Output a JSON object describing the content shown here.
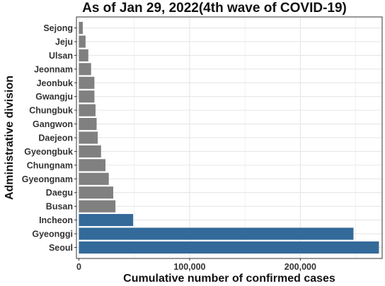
{
  "chart_data": {
    "type": "bar",
    "orientation": "horizontal",
    "title": "As of Jan 29, 2022(4th wave of COVID-19)",
    "xlabel": "Cumulative number of confirmed cases",
    "ylabel": "Administrative division",
    "categories": [
      "Seoul",
      "Gyeonggi",
      "Incheon",
      "Busan",
      "Daegu",
      "Gyeongnam",
      "Chungnam",
      "Gyeongbuk",
      "Daejeon",
      "Gangwon",
      "Chungbuk",
      "Gwangju",
      "Jeonbuk",
      "Jeonnam",
      "Ulsan",
      "Jeju",
      "Sejong"
    ],
    "values": [
      271000,
      248000,
      49000,
      33000,
      31000,
      27000,
      24000,
      20000,
      17000,
      16000,
      15000,
      14000,
      14000,
      11000,
      8500,
      6000,
      3500
    ],
    "highlighted": [
      "Seoul",
      "Gyeonggi",
      "Incheon"
    ],
    "colors": {
      "highlight": "#336a9a",
      "default": "#808080",
      "grid": "#e6e6e6"
    },
    "xlim": [
      0,
      272000
    ],
    "xticks": [
      0,
      100000,
      200000
    ],
    "xtick_labels": [
      "0",
      "100,000",
      "200,000"
    ],
    "grid": true,
    "legend": "none"
  }
}
